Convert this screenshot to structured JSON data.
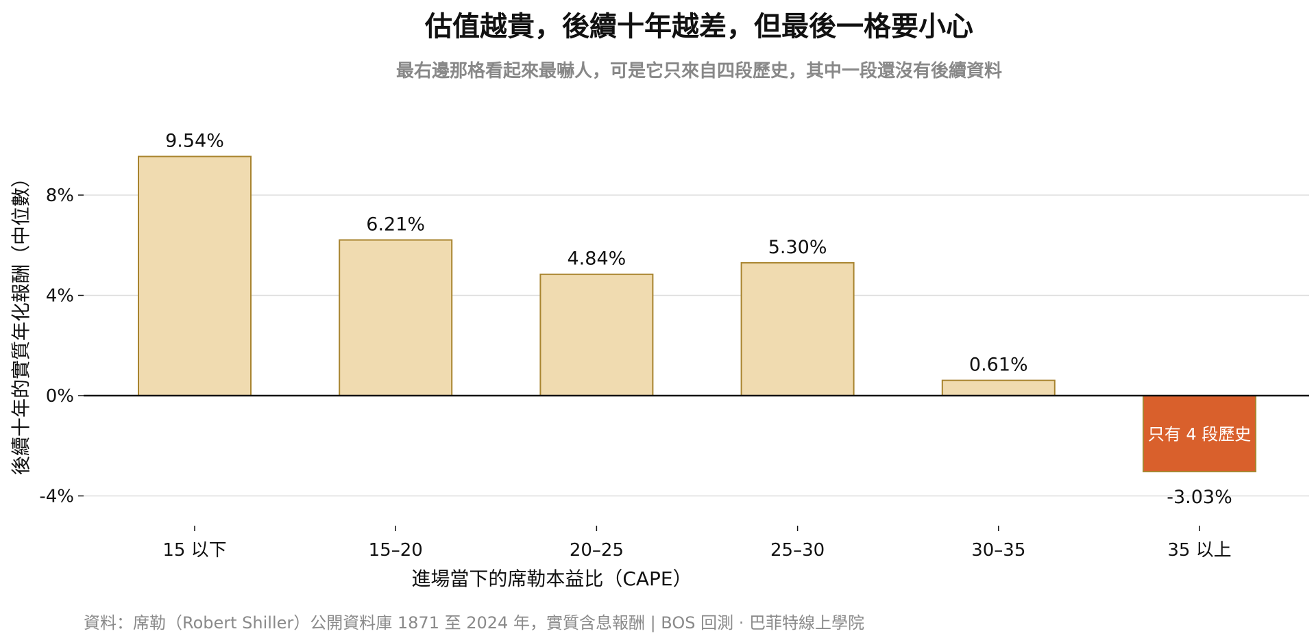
{
  "chart_data": {
    "type": "bar",
    "title": "估值越貴，後續十年越差，但最後一格要小心",
    "subtitle": "最右邊那格看起來最嚇人，可是它只來自四段歷史，其中一段還沒有後續資料",
    "xlabel": "進場當下的席勒本益比（CAPE）",
    "ylabel": "後續十年的實質年化報酬（中位數）",
    "categories": [
      "15 以下",
      "15–20",
      "20–25",
      "25–30",
      "30–35",
      "35 以上"
    ],
    "values": [
      9.54,
      6.21,
      4.84,
      5.3,
      0.61,
      -3.03
    ],
    "value_labels": [
      "9.54%",
      "6.21%",
      "4.84%",
      "5.30%",
      "0.61%",
      "-3.03%"
    ],
    "ylim": [
      -5,
      10.5
    ],
    "yticks": [
      -4,
      0,
      4,
      8
    ],
    "ytick_labels": [
      "-4%",
      "0%",
      "4%",
      "8%"
    ],
    "grid": true,
    "bar_color": "#f0dbb0",
    "bar_edge_color": "#a8842f",
    "highlight_index": 5,
    "highlight_color": "#d9602c",
    "highlight_annotation": "只有 4 段歷史",
    "source": "資料：席勒（Robert Shiller）公開資料庫 1871 至 2024 年，實質含息報酬 | BOS 回測 · 巴菲特線上學院"
  }
}
